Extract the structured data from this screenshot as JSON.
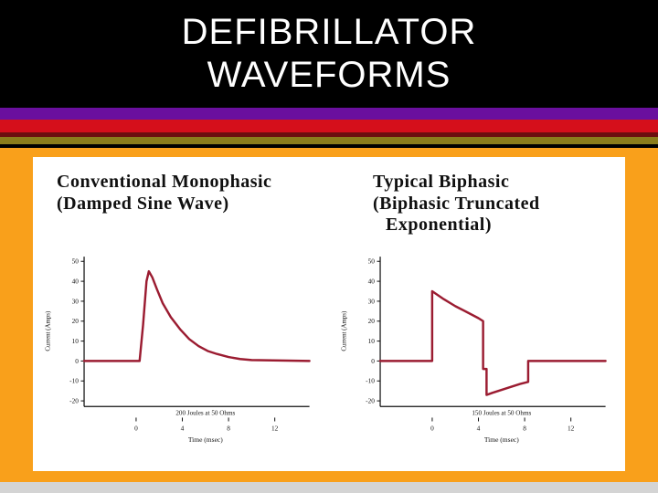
{
  "slide": {
    "title_line1": "DEFIBRILLATOR",
    "title_line2": "WAVEFORMS"
  },
  "colors": {
    "black": "#000000",
    "orange": "#F9A01B",
    "purple": "#6A0F9E",
    "red": "#D50F1B",
    "maroon": "#6B0F0F",
    "olive": "#8A7D1C",
    "panel_white": "#FFFFFF",
    "bottom_strip": "#D4D4D4",
    "waveform_red": "#9B1C31"
  },
  "chart_data": [
    {
      "type": "line",
      "title_lines": [
        "Conventional Monophasic",
        "(Damped Sine Wave)"
      ],
      "xlabel": "Time (msec)",
      "ylabel": "Current (Amps)",
      "annotation": "200 Joules at 50 Ohms",
      "xlim": [
        -4.5,
        15
      ],
      "ylim": [
        -20,
        50
      ],
      "xticks": [
        0,
        4,
        8,
        12
      ],
      "yticks": [
        50,
        40,
        30,
        20,
        10,
        0,
        -10,
        -20
      ],
      "grid": false,
      "line_color": "#9B1C31",
      "series": [
        {
          "name": "monophasic damped sine",
          "x": [
            -4.5,
            0.3,
            0.6,
            0.9,
            1.1,
            1.4,
            1.8,
            2.3,
            3.0,
            3.8,
            4.6,
            5.4,
            6.2,
            7.0,
            8.0,
            9.0,
            10.0,
            15.0
          ],
          "y": [
            0,
            0,
            18,
            40,
            45,
            42,
            36,
            29,
            22,
            16,
            11,
            7.5,
            5,
            3.5,
            2,
            1,
            0.5,
            0
          ]
        }
      ]
    },
    {
      "type": "line",
      "title_lines": [
        "Typical Biphasic",
        "(Biphasic Truncated",
        "Exponential)"
      ],
      "xlabel": "Time (msec)",
      "ylabel": "Current (Amps)",
      "annotation": "150 Joules at 50 Ohms",
      "xlim": [
        -4.5,
        15
      ],
      "ylim": [
        -20,
        50
      ],
      "xticks": [
        0,
        4,
        8,
        12
      ],
      "yticks": [
        50,
        40,
        30,
        20,
        10,
        0,
        -10,
        -20
      ],
      "grid": false,
      "line_color": "#9B1C31",
      "series": [
        {
          "name": "biphasic truncated exponential",
          "x": [
            -4.5,
            0,
            0,
            1,
            2,
            3,
            4,
            4.4,
            4.4,
            4.7,
            4.7,
            5.2,
            6.0,
            6.8,
            7.6,
            8.3,
            8.3,
            15
          ],
          "y": [
            0,
            0,
            35,
            31,
            27.5,
            24.5,
            21.5,
            20,
            -4,
            -4,
            -17,
            -16,
            -14.5,
            -13,
            -11.5,
            -10.5,
            0,
            0
          ]
        }
      ]
    }
  ]
}
